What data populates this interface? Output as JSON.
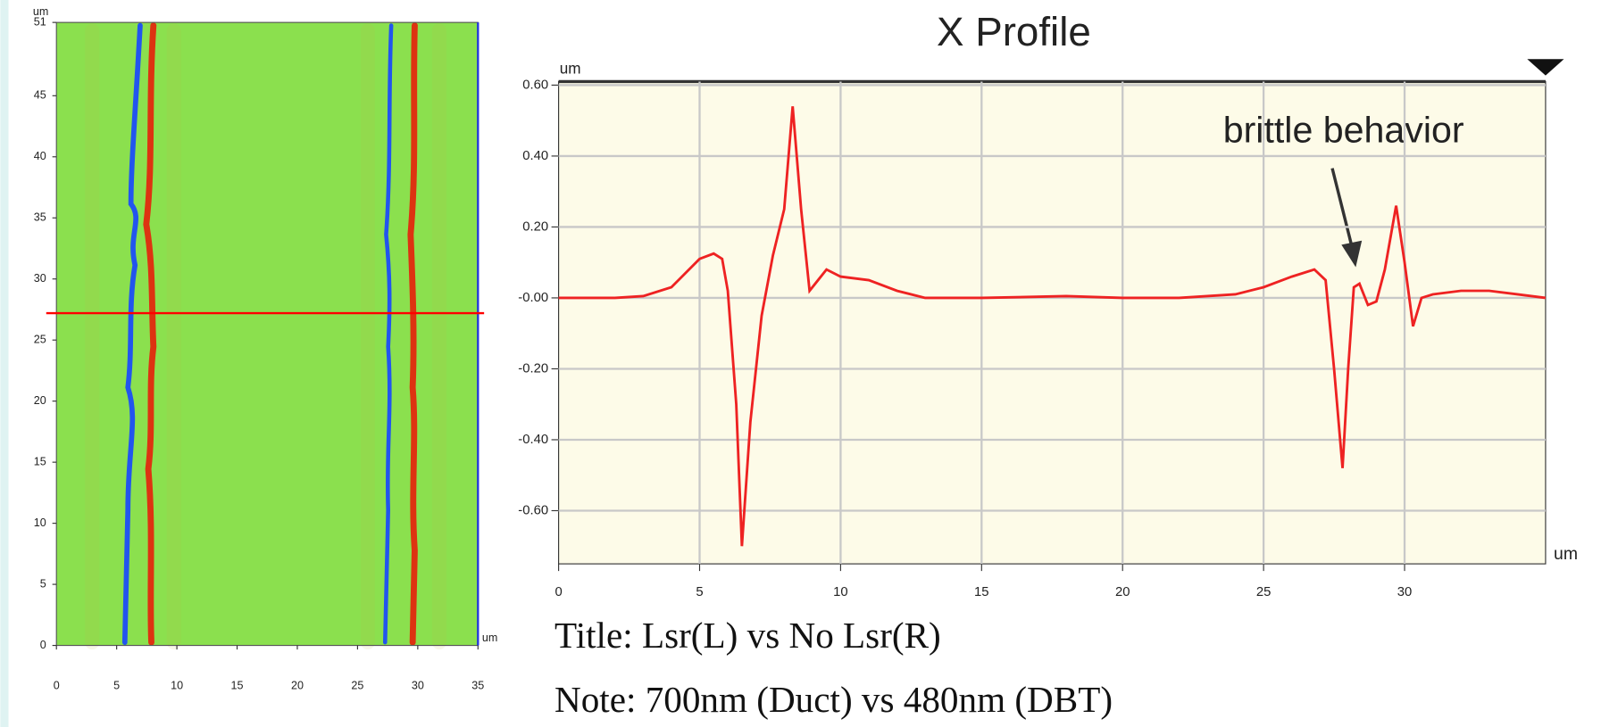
{
  "chart_data": [
    {
      "type": "heatmap",
      "y_unit": "um",
      "x_unit": "um",
      "xlim": [
        0,
        35
      ],
      "xticks": [
        0,
        5,
        10,
        15,
        20,
        25,
        30,
        35
      ],
      "ylim": [
        0,
        51
      ],
      "yticks": [
        0,
        5,
        10,
        15,
        20,
        25,
        30,
        35,
        40,
        45,
        51
      ],
      "profile_y": 27.2,
      "profile_color": "#ff0000",
      "grid": false
    },
    {
      "type": "line",
      "title": "X Profile",
      "y_unit": "um",
      "x_unit": "um",
      "xlim": [
        0,
        35
      ],
      "xticks": [
        0,
        5,
        10,
        15,
        20,
        25,
        30
      ],
      "ylim": [
        -0.75,
        0.61
      ],
      "yticks": [
        {
          "value": 0.6,
          "label": "0.60"
        },
        {
          "value": 0.4,
          "label": "0.40"
        },
        {
          "value": 0.2,
          "label": "0.20"
        },
        {
          "value": 0,
          "label": "-0.00"
        },
        {
          "value": -0.2,
          "label": "-0.20"
        },
        {
          "value": -0.4,
          "label": "-0.40"
        },
        {
          "value": -0.6,
          "label": "-0.60"
        }
      ],
      "grid": true,
      "annotation": "brittle behavior",
      "series": [
        {
          "color": "#ee2222",
          "x": [
            0,
            2,
            3,
            4,
            4.5,
            5,
            5.5,
            5.8,
            6.0,
            6.3,
            6.5,
            6.8,
            7.2,
            7.6,
            8.0,
            8.3,
            8.6,
            8.9,
            9.2,
            9.5,
            10,
            11,
            12,
            13,
            15,
            18,
            20,
            22,
            24,
            25,
            26,
            26.8,
            27.2,
            27.5,
            27.8,
            28.0,
            28.2,
            28.4,
            28.7,
            29.0,
            29.3,
            29.7,
            30.0,
            30.3,
            30.6,
            31,
            32,
            33,
            34,
            35
          ],
          "values": [
            0,
            0,
            0.005,
            0.03,
            0.07,
            0.11,
            0.125,
            0.11,
            0.02,
            -0.3,
            -0.7,
            -0.35,
            -0.05,
            0.12,
            0.25,
            0.54,
            0.25,
            0.02,
            0.05,
            0.08,
            0.06,
            0.05,
            0.02,
            0,
            0,
            0.005,
            0,
            0,
            0.01,
            0.03,
            0.06,
            0.08,
            0.05,
            -0.2,
            -0.48,
            -0.2,
            0.03,
            0.04,
            -0.02,
            -0.01,
            0.08,
            0.26,
            0.1,
            -0.08,
            0,
            0.01,
            0.02,
            0.02,
            0.01,
            0
          ]
        }
      ]
    }
  ],
  "notes": [
    "Title: Lsr(L) vs No Lsr(R)",
    "Note: 700nm (Duct) vs 480nm (DBT)"
  ]
}
